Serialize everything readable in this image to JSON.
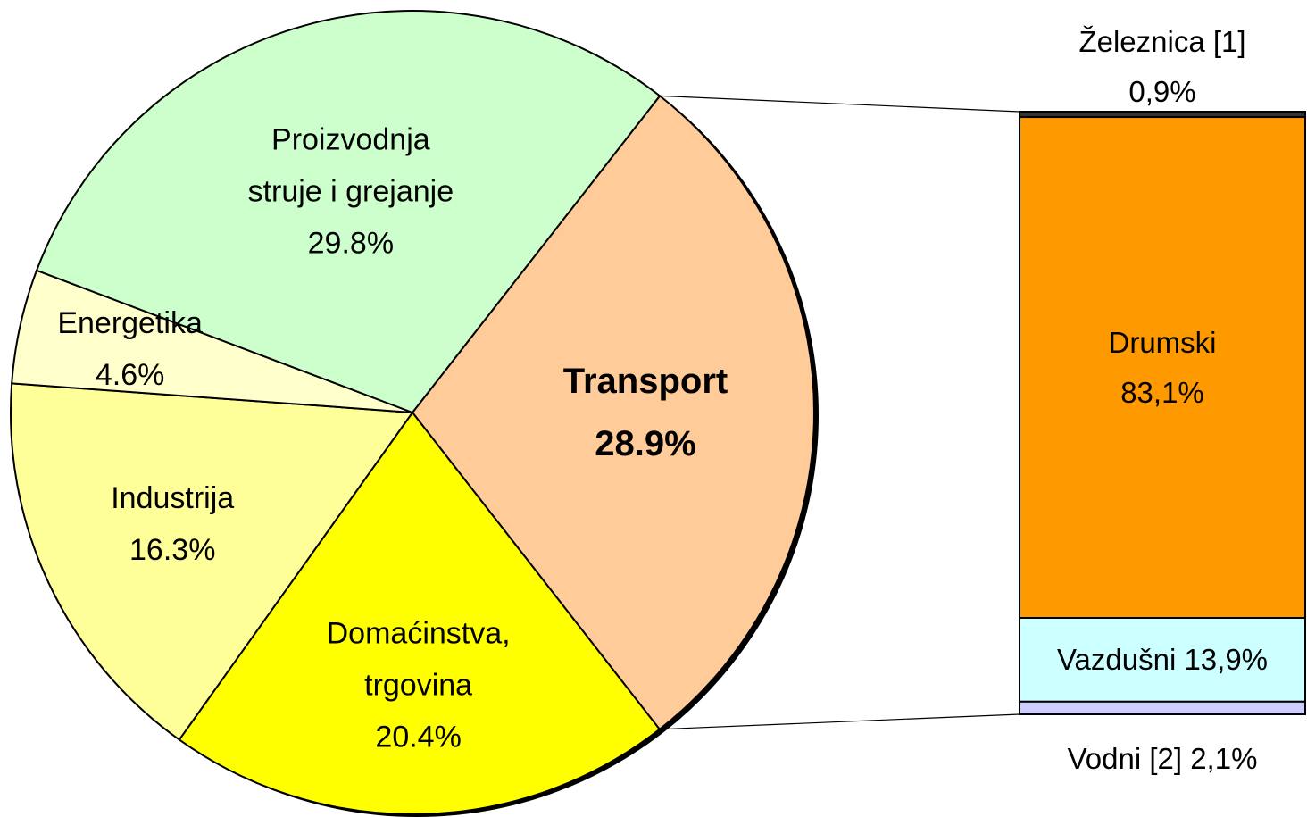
{
  "chart_data": {
    "type": "pie-of-bar",
    "pie": {
      "categories": [
        "Transport",
        "Domaćinstva,\ntrgovina",
        "Industrija",
        "Energetika",
        "Proizvodnja\nstruje i grejanje"
      ],
      "values": [
        28.9,
        20.4,
        16.3,
        4.6,
        29.8
      ],
      "value_labels": [
        "28.9%",
        "20.4%",
        "16.3%",
        "4.6%",
        "29.8%"
      ],
      "colors": [
        "#ffcc99",
        "#ffff00",
        "#ffff99",
        "#ffffcc",
        "#ccffcc"
      ]
    },
    "bar": {
      "categories": [
        "Železnica [1]",
        "Drumski",
        "Vazdušni",
        "Vodni [2]"
      ],
      "values": [
        0.9,
        83.1,
        13.9,
        2.1
      ],
      "value_labels": [
        "0,9%",
        "83,1%",
        "13,9%",
        "2,1%"
      ],
      "colors": [
        "#333333",
        "#ff9900",
        "#ccffff",
        "#ccccff"
      ]
    }
  }
}
